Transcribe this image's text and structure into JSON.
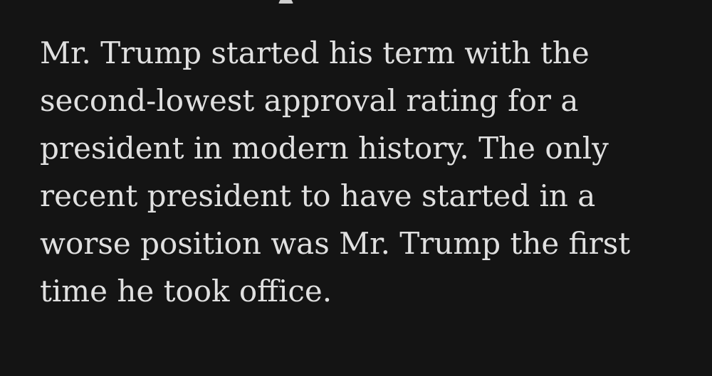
{
  "theme": {
    "background_color": "#141414",
    "text_color": "#e0e0e0"
  },
  "article": {
    "paragraph_lines": [
      "Mr. Trump started his term with the",
      "second-lowest approval rating for a",
      "president in modern history. The only",
      "recent president to have started in a",
      "worse position was Mr. Trump the first",
      "time he took office."
    ]
  }
}
